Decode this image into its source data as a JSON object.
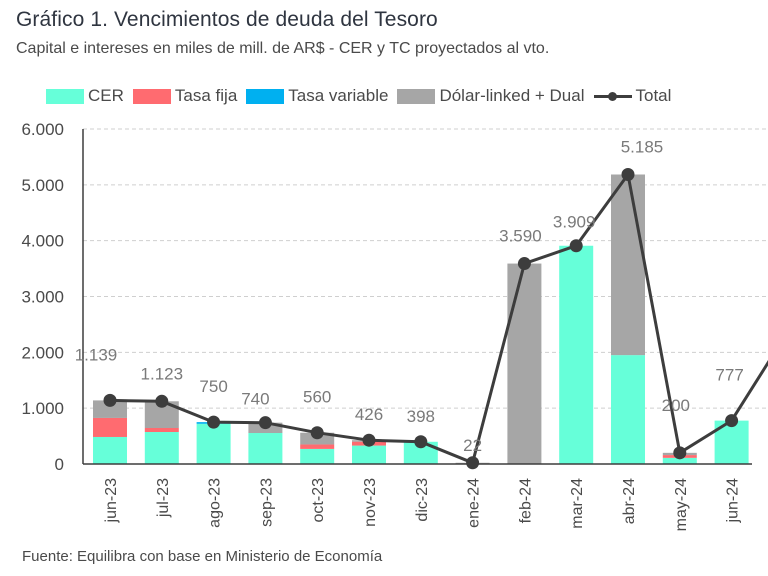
{
  "chart_data": {
    "type": "bar",
    "stacked": true,
    "title": "Gráfico 1. Vencimientos de deuda del Tesoro",
    "subtitle": "Capital e intereses en miles de mill. de AR$ - CER y TC proyectados al vto.",
    "source": "Fuente: Equilibra con base en Ministerio de Economía",
    "xlabel": "",
    "ylabel": "",
    "ylim": [
      0,
      6000
    ],
    "yticks": [
      0,
      1000,
      2000,
      3000,
      4000,
      5000,
      6000
    ],
    "ytick_labels": [
      "0",
      "1.000",
      "2.000",
      "3.000",
      "4.000",
      "5.000",
      "6.000"
    ],
    "grid": true,
    "legend_position": "top",
    "categories": [
      "jun-23",
      "jul-23",
      "ago-23",
      "sep-23",
      "oct-23",
      "nov-23",
      "dic-23",
      "ene-24",
      "feb-24",
      "mar-24",
      "abr-24",
      "may-24",
      "jun-24"
    ],
    "series": [
      {
        "name": "CER",
        "type": "bar",
        "color": "#66FFD9",
        "values": [
          484,
          573,
          720,
          555,
          270,
          330,
          398,
          0,
          0,
          3909,
          1950,
          110,
          777
        ]
      },
      {
        "name": "Tasa fija",
        "type": "bar",
        "color": "#FF6B70",
        "values": [
          341,
          72,
          0,
          0,
          80,
          70,
          0,
          0,
          0,
          0,
          0,
          50,
          0
        ]
      },
      {
        "name": "Tasa variable",
        "type": "bar",
        "color": "#00B0F0",
        "values": [
          0,
          0,
          30,
          0,
          0,
          0,
          0,
          0,
          0,
          0,
          0,
          0,
          0
        ]
      },
      {
        "name": "Dólar-linked + Dual",
        "type": "bar",
        "color": "#A6A6A6",
        "values": [
          314,
          478,
          0,
          185,
          210,
          26,
          0,
          22,
          3590,
          0,
          3235,
          40,
          0
        ]
      },
      {
        "name": "Total",
        "type": "line",
        "color": "#3D3D3D",
        "values": [
          1139,
          1123,
          750,
          740,
          560,
          426,
          398,
          22,
          3590,
          3909,
          5185,
          200,
          777
        ]
      }
    ],
    "data_labels": [
      "1.139",
      "1.123",
      "750",
      "740",
      "560",
      "426",
      "398",
      "22",
      "3.590",
      "3.909",
      "5.185",
      "200",
      "777"
    ],
    "line_continues_after_last": 2250
  },
  "legend": [
    {
      "label": "CER",
      "color": "#66FFD9",
      "kind": "box"
    },
    {
      "label": "Tasa fija",
      "color": "#FF6B70",
      "kind": "box"
    },
    {
      "label": "Tasa variable",
      "color": "#00B0F0",
      "kind": "box"
    },
    {
      "label": "Dólar-linked + Dual",
      "color": "#A6A6A6",
      "kind": "box"
    },
    {
      "label": "Total",
      "color": "#3D3D3D",
      "kind": "line"
    }
  ]
}
